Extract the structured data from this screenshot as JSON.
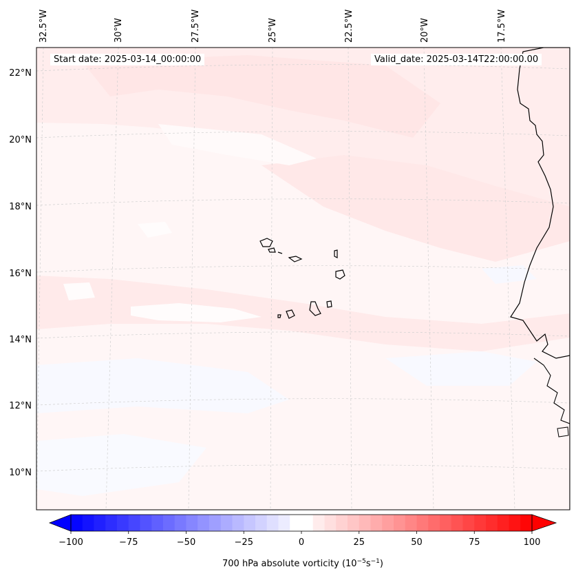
{
  "annotations": {
    "start_date": "Start date: 2025-03-14_00:00:00",
    "valid_date": "Valid_date: 2025-03-14T22:00:00.00"
  },
  "longitude_labels": [
    "32.5°W",
    "30°W",
    "27.5°W",
    "25°W",
    "22.5°W",
    "20°W",
    "17.5°W"
  ],
  "latitude_labels": [
    "22°N",
    "20°N",
    "18°N",
    "16°N",
    "14°N",
    "12°N",
    "10°N"
  ],
  "colorbar": {
    "tick_labels": [
      "−100",
      "−75",
      "−50",
      "−25",
      "0",
      "25",
      "50",
      "75",
      "100"
    ],
    "tick_values": [
      -100,
      -75,
      -50,
      -25,
      0,
      25,
      50,
      75,
      100
    ],
    "label_text": "700 hPa absolute vorticity (10",
    "label_exp1": "−5",
    "label_unit": "s",
    "label_exp2": "−1",
    "label_close": ")",
    "min_color": "#0000ff",
    "mid_color": "#ffffff",
    "max_color": "#ff0000"
  },
  "colors": {
    "background_field": "#fff6f6",
    "band_pink": "#ffe3e3",
    "band_light": "#fff0f0",
    "patch_white": "#fefcfc",
    "patch_blue": "#f6f8ff",
    "coastline": "#000000",
    "gridline": "#c8c8c8"
  }
}
